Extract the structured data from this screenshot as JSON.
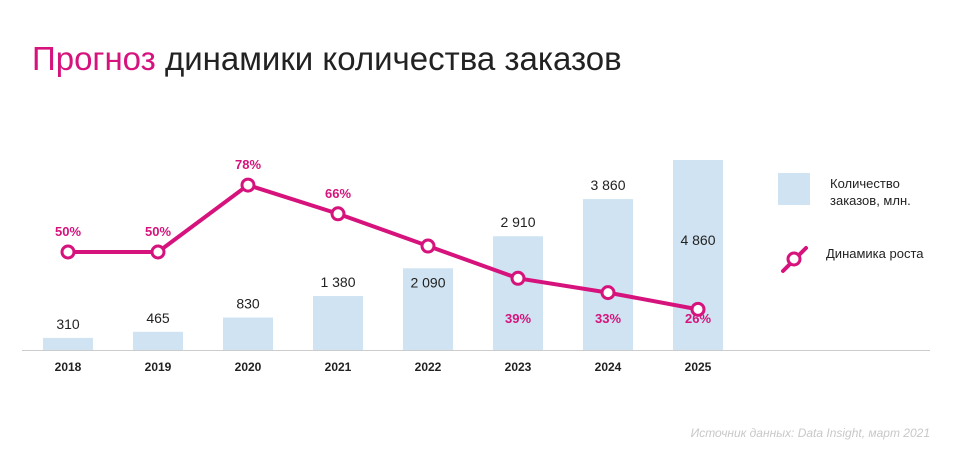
{
  "title": {
    "accent": "Прогноз",
    "rest": " динамики количества заказов"
  },
  "source": "Источник данных: Data Insight, март 2021",
  "colors": {
    "bar": "#cfe3f2",
    "line": "#d6137c",
    "text": "#222222",
    "axis": "#cccccc"
  },
  "chart_data": {
    "type": "bar+line",
    "categories": [
      "2018",
      "2019",
      "2020",
      "2021",
      "2022",
      "2023",
      "2024",
      "2025"
    ],
    "series": [
      {
        "name": "Количество заказов, млн.",
        "type": "bar",
        "values": [
          310,
          465,
          830,
          1380,
          2090,
          2910,
          3860,
          4860
        ],
        "labels": [
          "310",
          "465",
          "830",
          "1 380",
          "2 090",
          "2 910",
          "3 860",
          "4 860"
        ]
      },
      {
        "name": "Динамика роста",
        "type": "line",
        "values": [
          50,
          50,
          78,
          66,
          null,
          39,
          33,
          26
        ],
        "labels": [
          "50%",
          "50%",
          "78%",
          "66%",
          "",
          "39%",
          "33%",
          "26%"
        ]
      }
    ],
    "legend": {
      "position": "right",
      "bar_label": "Количество заказов, млн.",
      "line_label": "Динамика роста"
    },
    "grid": false
  }
}
